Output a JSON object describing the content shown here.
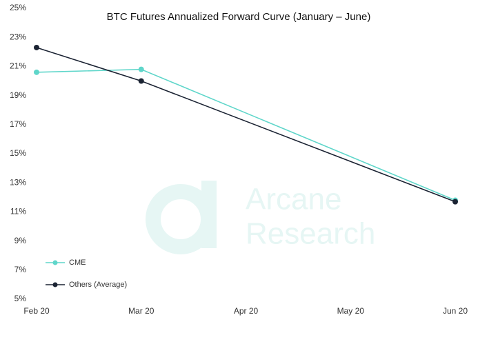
{
  "chart_data": {
    "type": "line",
    "title": "BTC Futures Annualized Forward Curve (January – June)",
    "watermark": [
      "Arcane",
      "Research"
    ],
    "categories": [
      "Feb 20",
      "Mar 20",
      "Apr 20",
      "May 20",
      "Jun 20"
    ],
    "series": [
      {
        "name": "CME",
        "color": "#5fd6ca",
        "x": [
          "Feb 20",
          "Mar 20",
          "Jun 20"
        ],
        "values": [
          20.6,
          20.8,
          11.8
        ]
      },
      {
        "name": "Others (Average)",
        "color": "#1b2333",
        "x": [
          "Feb 20",
          "Mar 20",
          "Jun 20"
        ],
        "values": [
          22.3,
          20.0,
          11.7
        ]
      }
    ],
    "ylim": [
      5,
      25
    ],
    "yticks": [
      {
        "value": 5,
        "label": "5%"
      },
      {
        "value": 7,
        "label": "7%"
      },
      {
        "value": 9,
        "label": "9%"
      },
      {
        "value": 11,
        "label": "11%"
      },
      {
        "value": 13,
        "label": "13%"
      },
      {
        "value": 15,
        "label": "15%"
      },
      {
        "value": 17,
        "label": "17%"
      },
      {
        "value": 19,
        "label": "19%"
      },
      {
        "value": 21,
        "label": "21%"
      },
      {
        "value": 23,
        "label": "23%"
      },
      {
        "value": 25,
        "label": "25%"
      }
    ],
    "grid": false,
    "legend": "lower left"
  }
}
